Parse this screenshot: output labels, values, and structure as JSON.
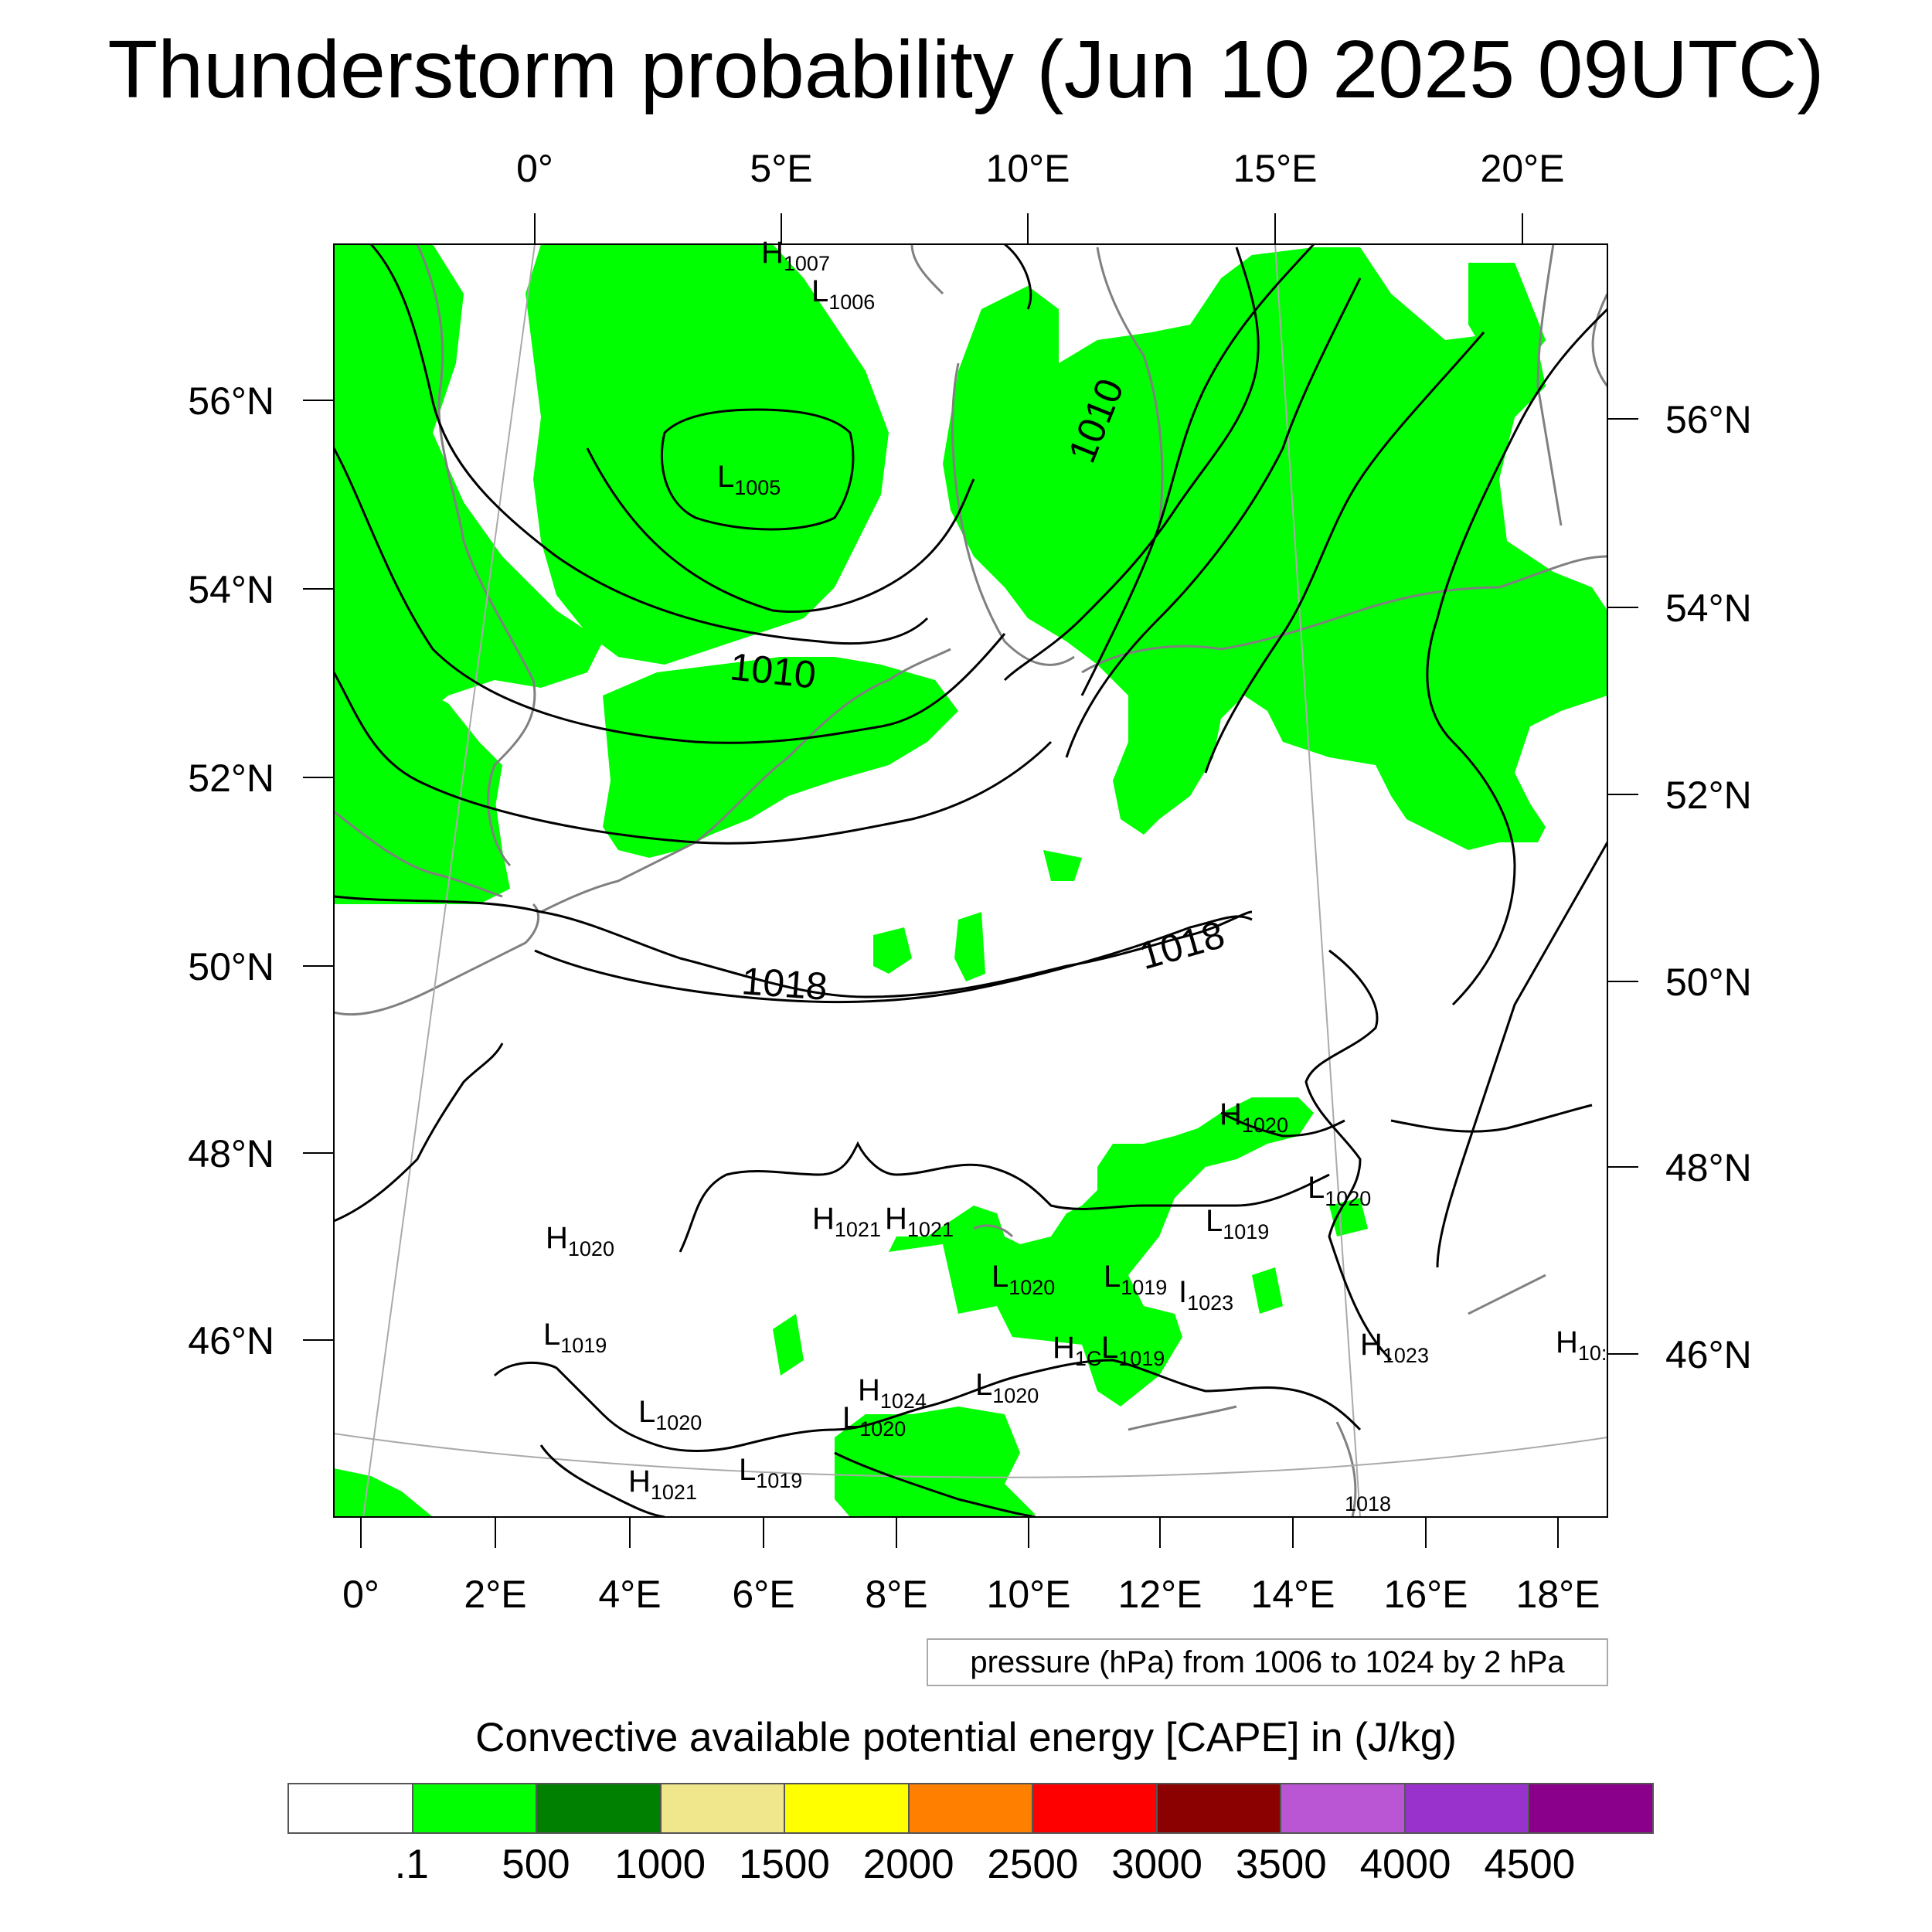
{
  "title": "Thunderstorm probability (Jun 10 2025 09UTC)",
  "top_axis": [
    "0°",
    "5°E",
    "10°E",
    "15°E",
    "20°E"
  ],
  "bottom_axis": [
    "0°",
    "2°E",
    "4°E",
    "6°E",
    "8°E",
    "10°E",
    "12°E",
    "14°E",
    "16°E",
    "18°E"
  ],
  "left_axis": [
    "56°N",
    "54°N",
    "52°N",
    "50°N",
    "48°N",
    "46°N"
  ],
  "right_axis": [
    "56°N",
    "54°N",
    "52°N",
    "50°N",
    "48°N",
    "46°N"
  ],
  "isobar_labels": [
    "1010",
    "1010",
    "1018",
    "1018"
  ],
  "pressure_centers": [
    {
      "type": "H",
      "value": "1007"
    },
    {
      "type": "L",
      "value": "1006"
    },
    {
      "type": "L",
      "value": "1005"
    },
    {
      "type": "H",
      "value": "1020"
    },
    {
      "type": "L",
      "value": "1020"
    },
    {
      "type": "H",
      "value": "1021"
    },
    {
      "type": "H",
      "value": "1021"
    },
    {
      "type": "L",
      "value": "1019"
    },
    {
      "type": "H",
      "value": "1020"
    },
    {
      "type": "L",
      "value": "1020"
    },
    {
      "type": "L",
      "value": "1019"
    },
    {
      "type": "I",
      "value": "1023"
    },
    {
      "type": "L",
      "value": "1019"
    },
    {
      "type": "H",
      "value": "1023"
    },
    {
      "type": "H",
      "value": "10:"
    },
    {
      "type": "H",
      "value": "1C"
    },
    {
      "type": "L",
      "value": "1019"
    },
    {
      "type": "H",
      "value": "1024"
    },
    {
      "type": "L",
      "value": "1020"
    },
    {
      "type": "L",
      "value": "1020"
    },
    {
      "type": "L",
      "value": "1020"
    },
    {
      "type": "L",
      "value": "1019"
    },
    {
      "type": "H",
      "value": "1021"
    },
    {
      "type": "",
      "value": "1018"
    }
  ],
  "contour_note": "pressure (hPa) from 1006 to 1024 by 2 hPa",
  "colorbar": {
    "title": "Convective available potential energy [CAPE] in (J/kg)",
    "colors": [
      "#ffffff",
      "#00ff00",
      "#008000",
      "#f0e68c",
      "#ffff00",
      "#ff8000",
      "#ff0000",
      "#8b0000",
      "#ba55d3",
      "#9932cc",
      "#8b008b"
    ],
    "labels": [
      ".1",
      "500",
      "1000",
      "1500",
      "2000",
      "2500",
      "3000",
      "3500",
      "4000",
      "4500"
    ]
  }
}
